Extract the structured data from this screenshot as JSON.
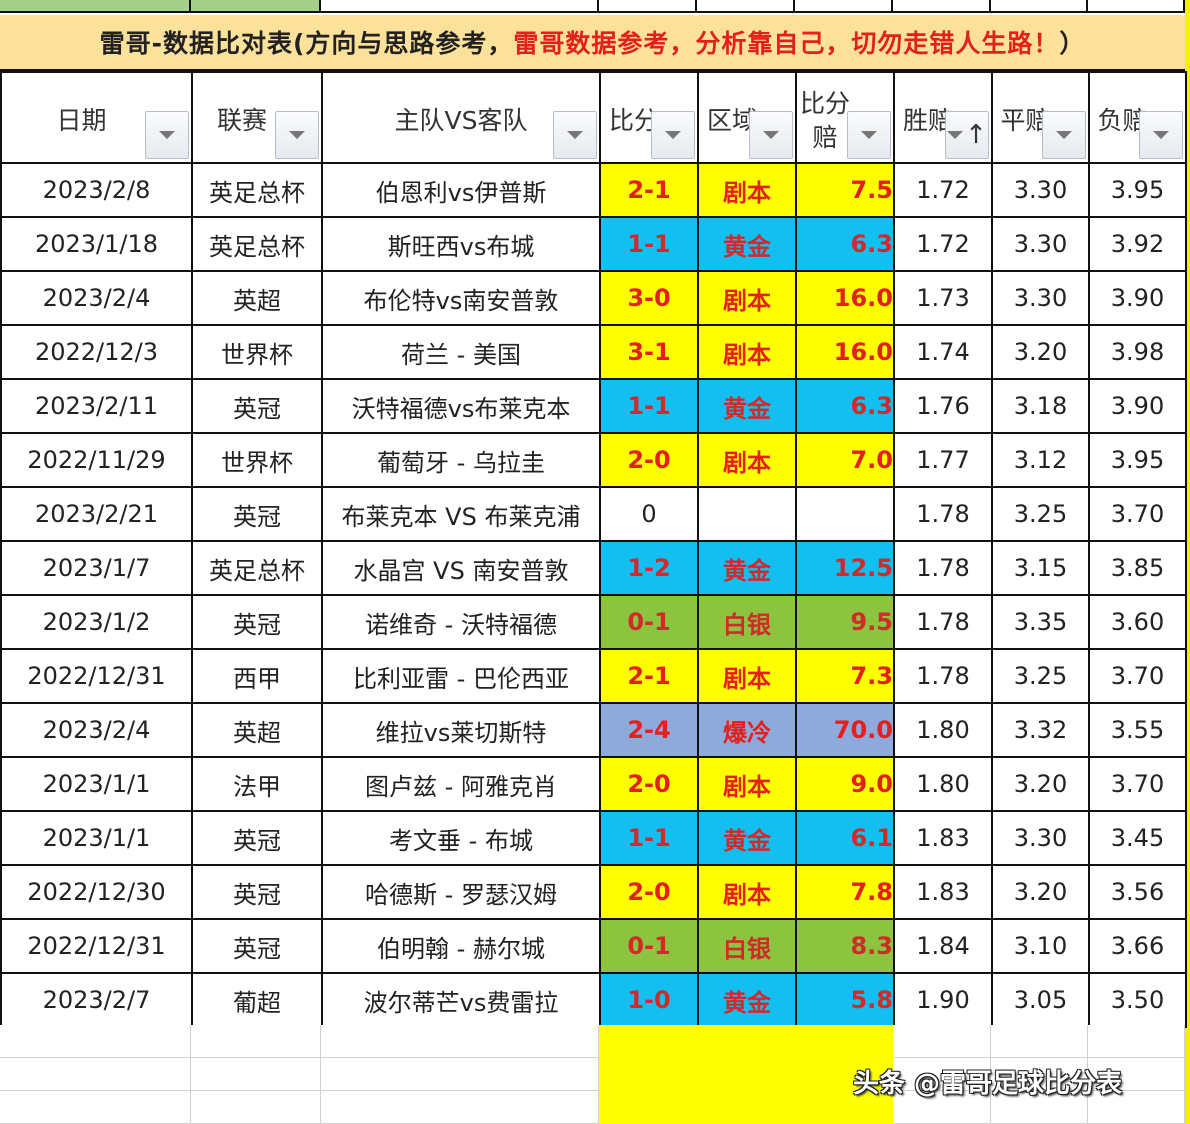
{
  "title": {
    "black_part": "雷哥-数据比对表(方向与思路参考，",
    "red_part": "雷哥数据参考，分析靠自己，切勿走错人生路！",
    "close": "）"
  },
  "columns": [
    {
      "label": "日期",
      "filter": "filter-dropdown"
    },
    {
      "label": "联赛",
      "filter": "filter-dropdown"
    },
    {
      "label": "主队VS客队",
      "filter": "filter-dropdown"
    },
    {
      "label": "比分",
      "filter": "filter-dropdown"
    },
    {
      "label": "区域",
      "filter": "filter-dropdown"
    },
    {
      "label": "比分赔",
      "filter": "filter-dropdown"
    },
    {
      "label": "胜赔",
      "filter": "sort-ascending"
    },
    {
      "label": "平赔",
      "filter": "filter-dropdown"
    },
    {
      "label": "负赔",
      "filter": "filter-dropdown"
    }
  ],
  "colors": {
    "title_bg": "#fbe19a",
    "title_red": "#e3201b",
    "剧本": "#ffff00",
    "黄金": "#12bff0",
    "白银": "#8dc43f",
    "爆冷": "#8ea9db",
    "top_strip_green": "#a6d08a"
  },
  "rows": [
    {
      "date": "2023/2/8",
      "league": "英足总杯",
      "match": "伯恩利vs伊普斯",
      "score": "2-1",
      "zone": "剧本",
      "score_odds": "7.5",
      "win": "1.72",
      "draw": "3.30",
      "lose": "3.95",
      "color": "yellow"
    },
    {
      "date": "2023/1/18",
      "league": "英足总杯",
      "match": "斯旺西vs布城",
      "score": "1-1",
      "zone": "黄金",
      "score_odds": "6.3",
      "win": "1.72",
      "draw": "3.30",
      "lose": "3.92",
      "color": "blue"
    },
    {
      "date": "2023/2/4",
      "league": "英超",
      "match": "布伦特vs南安普敦",
      "score": "3-0",
      "zone": "剧本",
      "score_odds": "16.0",
      "win": "1.73",
      "draw": "3.30",
      "lose": "3.90",
      "color": "yellow"
    },
    {
      "date": "2022/12/3",
      "league": "世界杯",
      "match": "荷兰 - 美国",
      "score": "3-1",
      "zone": "剧本",
      "score_odds": "16.0",
      "win": "1.74",
      "draw": "3.20",
      "lose": "3.98",
      "color": "yellow"
    },
    {
      "date": "2023/2/11",
      "league": "英冠",
      "match": "沃特福德vs布莱克本",
      "score": "1-1",
      "zone": "黄金",
      "score_odds": "6.3",
      "win": "1.76",
      "draw": "3.18",
      "lose": "3.90",
      "color": "blue"
    },
    {
      "date": "2022/11/29",
      "league": "世界杯",
      "match": "葡萄牙 - 乌拉圭",
      "score": "2-0",
      "zone": "剧本",
      "score_odds": "7.0",
      "win": "1.77",
      "draw": "3.12",
      "lose": "3.95",
      "color": "yellow"
    },
    {
      "date": "2023/2/21",
      "league": "英冠",
      "match": "布莱克本 VS 布莱克浦",
      "score": "0",
      "zone": "",
      "score_odds": "",
      "win": "1.78",
      "draw": "3.25",
      "lose": "3.70",
      "color": "none"
    },
    {
      "date": "2023/1/7",
      "league": "英足总杯",
      "match": "水晶宫 VS 南安普敦",
      "score": "1-2",
      "zone": "黄金",
      "score_odds": "12.5",
      "win": "1.78",
      "draw": "3.15",
      "lose": "3.85",
      "color": "blue"
    },
    {
      "date": "2023/1/2",
      "league": "英冠",
      "match": "诺维奇 - 沃特福德",
      "score": "0-1",
      "zone": "白银",
      "score_odds": "9.5",
      "win": "1.78",
      "draw": "3.35",
      "lose": "3.60",
      "color": "green"
    },
    {
      "date": "2022/12/31",
      "league": "西甲",
      "match": "比利亚雷 - 巴伦西亚",
      "score": "2-1",
      "zone": "剧本",
      "score_odds": "7.3",
      "win": "1.78",
      "draw": "3.25",
      "lose": "3.70",
      "color": "yellow"
    },
    {
      "date": "2023/2/4",
      "league": "英超",
      "match": "维拉vs莱切斯特",
      "score": "2-4",
      "zone": "爆冷",
      "score_odds": "70.0",
      "win": "1.80",
      "draw": "3.32",
      "lose": "3.55",
      "color": "purple"
    },
    {
      "date": "2023/1/1",
      "league": "法甲",
      "match": "图卢兹 - 阿雅克肖",
      "score": "2-0",
      "zone": "剧本",
      "score_odds": "9.0",
      "win": "1.80",
      "draw": "3.20",
      "lose": "3.70",
      "color": "yellow"
    },
    {
      "date": "2023/1/1",
      "league": "英冠",
      "match": "考文垂 - 布城",
      "score": "1-1",
      "zone": "黄金",
      "score_odds": "6.1",
      "win": "1.83",
      "draw": "3.30",
      "lose": "3.45",
      "color": "blue"
    },
    {
      "date": "2022/12/30",
      "league": "英冠",
      "match": "哈德斯 - 罗瑟汉姆",
      "score": "2-0",
      "zone": "剧本",
      "score_odds": "7.8",
      "win": "1.83",
      "draw": "3.20",
      "lose": "3.56",
      "color": "yellow"
    },
    {
      "date": "2022/12/31",
      "league": "英冠",
      "match": "伯明翰 - 赫尔城",
      "score": "0-1",
      "zone": "白银",
      "score_odds": "8.3",
      "win": "1.84",
      "draw": "3.10",
      "lose": "3.66",
      "color": "green"
    },
    {
      "date": "2023/2/7",
      "league": "葡超",
      "match": "波尔蒂芒vs费雷拉",
      "score": "1-0",
      "zone": "黄金",
      "score_odds": "5.8",
      "win": "1.90",
      "draw": "3.05",
      "lose": "3.50",
      "color": "blue"
    }
  ],
  "watermark": "头条 @雷哥足球比分表"
}
